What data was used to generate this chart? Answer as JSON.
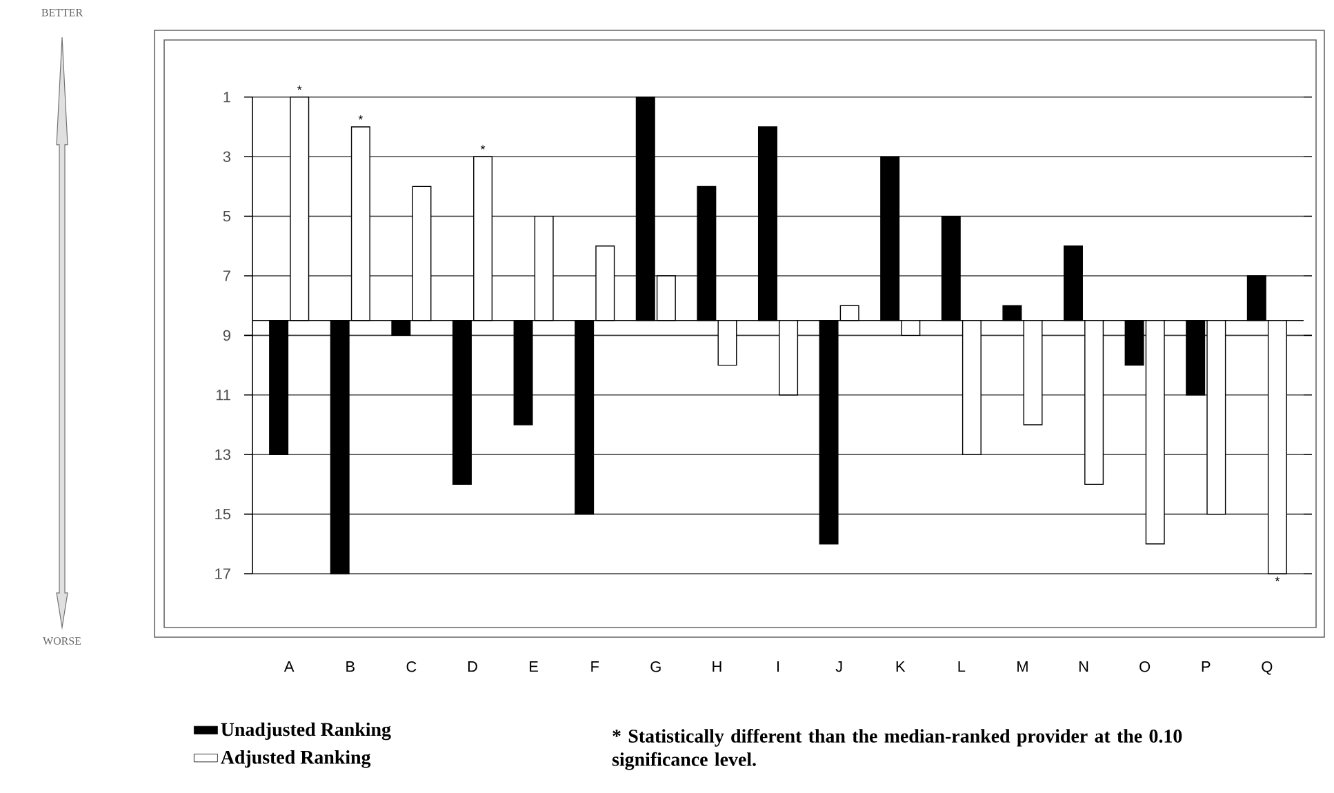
{
  "chart_data": {
    "type": "bar",
    "categories": [
      "A",
      "B",
      "C",
      "D",
      "E",
      "F",
      "G",
      "H",
      "I",
      "J",
      "K",
      "L",
      "M",
      "N",
      "O",
      "P",
      "Q"
    ],
    "series": [
      {
        "name": "Unadjusted Ranking",
        "color": "#000000",
        "base": [
          8.5,
          8.5,
          8.5,
          8.5,
          8.5,
          8.5,
          8.5,
          8.5,
          8.5,
          8.5,
          8.5,
          8.5,
          8.5,
          8.5,
          8.5,
          8.5,
          8.5
        ],
        "values": [
          4.5,
          8.5,
          0.5,
          5.5,
          3.5,
          6.5,
          -7.5,
          -4.5,
          -6.5,
          7.5,
          -5.5,
          -3.5,
          -0.5,
          -2.5,
          1.5,
          2.5,
          -1.5
        ]
      },
      {
        "name": "Adjusted Ranking",
        "color": "#ffffff",
        "base": [
          8.5,
          8.5,
          8.5,
          8.5,
          8.5,
          8.5,
          8.5,
          8.5,
          8.5,
          8.5,
          8.5,
          8.5,
          8.5,
          8.5,
          8.5,
          8.5,
          8.5
        ],
        "values": [
          -7.5,
          -6.5,
          -4.5,
          -5.5,
          -3.5,
          -2.5,
          -1.5,
          1.5,
          2.5,
          -0.5,
          0.5,
          4.5,
          3.5,
          5.5,
          7.5,
          6.5,
          8.5
        ]
      }
    ],
    "ylim": [
      17,
      1
    ],
    "ref_lines": [
      {
        "axis": "y",
        "value": 8.5,
        "color": "#000000"
      }
    ],
    "yticks": [
      1,
      3,
      5,
      7,
      9,
      11,
      13,
      15,
      17
    ],
    "grid": "y",
    "legend": "bottom left",
    "annotations": [
      "BETTER",
      "WORSE",
      "* Statistically different than the median-ranked provider at the 0.10 significance level.",
      {
        "text": "*",
        "x": "A",
        "y": 1
      },
      {
        "text": "*",
        "x": "B",
        "y": 2
      },
      {
        "text": "*",
        "x": "D",
        "y": 3
      },
      {
        "text": "*",
        "x": "Q",
        "y": 17
      }
    ]
  }
}
